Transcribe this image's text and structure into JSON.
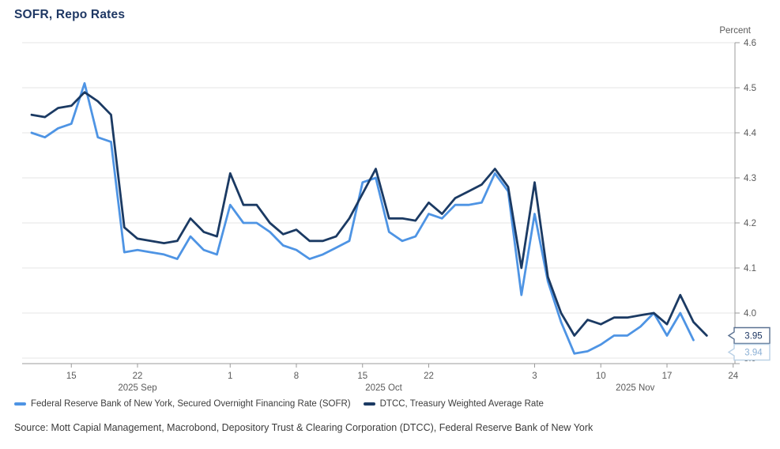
{
  "title": "SOFR, Repo Rates",
  "y_axis_unit": "Percent",
  "legend": {
    "items": [
      {
        "label": "Federal Reserve Bank of New York, Secured Overnight Financing Rate (SOFR)"
      },
      {
        "label": "DTCC, Treasury Weighted Average Rate"
      }
    ]
  },
  "source": "Source: Mott Capial Management, Macrobond, Depository Trust & Clearing Corporation (DTCC), Federal Reserve Bank of New York",
  "chart_data": {
    "type": "line",
    "title": "SOFR, Repo Rates",
    "ylabel": "Percent",
    "ylim": [
      3.9,
      4.6
    ],
    "ytick_step": 0.1,
    "grid": true,
    "legend_position": "bottom",
    "x": [
      "Sep 10",
      "Sep 11",
      "Sep 12",
      "Sep 15",
      "Sep 16",
      "Sep 17",
      "Sep 18",
      "Sep 19",
      "Sep 22",
      "Sep 23",
      "Sep 24",
      "Sep 25",
      "Sep 26",
      "Sep 29",
      "Sep 30",
      "Oct 1",
      "Oct 2",
      "Oct 3",
      "Oct 6",
      "Oct 7",
      "Oct 8",
      "Oct 9",
      "Oct 10",
      "Oct 13",
      "Oct 14",
      "Oct 15",
      "Oct 16",
      "Oct 17",
      "Oct 20",
      "Oct 21",
      "Oct 22",
      "Oct 23",
      "Oct 24",
      "Oct 27",
      "Oct 28",
      "Oct 29",
      "Oct 30",
      "Oct 31",
      "Nov 3",
      "Nov 4",
      "Nov 5",
      "Nov 6",
      "Nov 7",
      "Nov 10",
      "Nov 11",
      "Nov 12",
      "Nov 13",
      "Nov 14",
      "Nov 17",
      "Nov 18",
      "Nov 19",
      "Nov 20"
    ],
    "x_ticks": [
      {
        "label": "15",
        "i": 3
      },
      {
        "label": "22",
        "i": 8
      },
      {
        "label": "1",
        "i": 15
      },
      {
        "label": "8",
        "i": 20
      },
      {
        "label": "15",
        "i": 25
      },
      {
        "label": "22",
        "i": 30
      },
      {
        "label": "3",
        "i": 38
      },
      {
        "label": "10",
        "i": 43
      },
      {
        "label": "17",
        "i": 48
      },
      {
        "label": "24",
        "i": 53
      }
    ],
    "month_labels": [
      {
        "label": "2025 Sep",
        "i": 8
      },
      {
        "label": "2025 Oct",
        "i": 26.6
      },
      {
        "label": "2025 Nov",
        "i": 45.6
      }
    ],
    "series": [
      {
        "name": "Federal Reserve Bank of New York, Secured Overnight Financing Rate (SOFR)",
        "color": "#4e94e4",
        "values": [
          4.4,
          4.39,
          4.41,
          4.42,
          4.51,
          4.39,
          4.38,
          4.135,
          4.14,
          4.135,
          4.13,
          4.12,
          4.17,
          4.14,
          4.13,
          4.24,
          4.2,
          4.2,
          4.18,
          4.15,
          4.14,
          4.12,
          4.13,
          4.145,
          4.16,
          4.29,
          4.3,
          4.18,
          4.16,
          4.17,
          4.22,
          4.21,
          4.24,
          4.24,
          4.245,
          4.31,
          4.27,
          4.04,
          4.22,
          4.07,
          3.98,
          3.91,
          3.915,
          3.93,
          3.95,
          3.95,
          3.97,
          4.0,
          3.95,
          4.0,
          3.94,
          null
        ]
      },
      {
        "name": "DTCC, Treasury Weighted Average Rate",
        "color": "#1b3a63",
        "values": [
          4.44,
          4.435,
          4.455,
          4.46,
          4.49,
          4.47,
          4.44,
          4.19,
          4.165,
          4.16,
          4.155,
          4.16,
          4.21,
          4.18,
          4.17,
          4.31,
          4.24,
          4.24,
          4.2,
          4.175,
          4.185,
          4.16,
          4.16,
          4.17,
          4.21,
          4.265,
          4.32,
          4.21,
          4.21,
          4.205,
          4.245,
          4.22,
          4.255,
          4.27,
          4.285,
          4.32,
          4.28,
          4.1,
          4.29,
          4.08,
          4.0,
          3.95,
          3.985,
          3.975,
          3.99,
          3.99,
          3.995,
          4.0,
          3.975,
          4.04,
          3.98,
          3.95
        ]
      }
    ],
    "end_labels": [
      {
        "text": "3.95",
        "value": 3.95,
        "text_color": "#1f3864",
        "border_color": "#5a7191"
      },
      {
        "text": "3.94",
        "value": 3.94,
        "text_color": "#8aafd4",
        "border_color": "#bad1e6"
      }
    ],
    "colors": {
      "grid": "#e4e4e4",
      "axis": "#9b9b9b",
      "tick_text": "#5a5a5a",
      "title_text": "#1f3864"
    }
  }
}
